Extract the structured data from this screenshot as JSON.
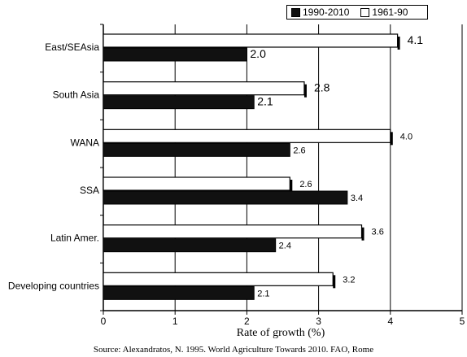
{
  "chart_data": {
    "type": "bar",
    "orientation": "horizontal",
    "categories": [
      "East/SEAsia",
      "South Asia",
      "WANA",
      "SSA",
      "Latin Amer.",
      "Developing countries"
    ],
    "series": [
      {
        "name": "1990-2010",
        "values": [
          2.0,
          2.1,
          2.6,
          3.4,
          2.4,
          2.1
        ],
        "labels": [
          "2.0",
          "2.1",
          "2.6",
          "3.4",
          "2.4",
          "2.1"
        ],
        "color": "#111111"
      },
      {
        "name": "1961-90",
        "values": [
          4.1,
          2.8,
          4.0,
          2.6,
          3.6,
          3.2
        ],
        "labels": [
          "4.1",
          "2.8",
          "4.0",
          "2.6",
          "3.6",
          "3.2"
        ],
        "color": "#ffffff"
      }
    ],
    "xlabel": "Rate of growth (%)",
    "xlim": [
      0,
      5
    ],
    "xticks": [
      "0",
      "1",
      "2",
      "3",
      "4",
      "5"
    ],
    "grid": "vertical",
    "legend_position": "top-right"
  },
  "source": "Source:  Alexandratos, N. 1995. World Agriculture Towards 2010. FAO, Rome"
}
